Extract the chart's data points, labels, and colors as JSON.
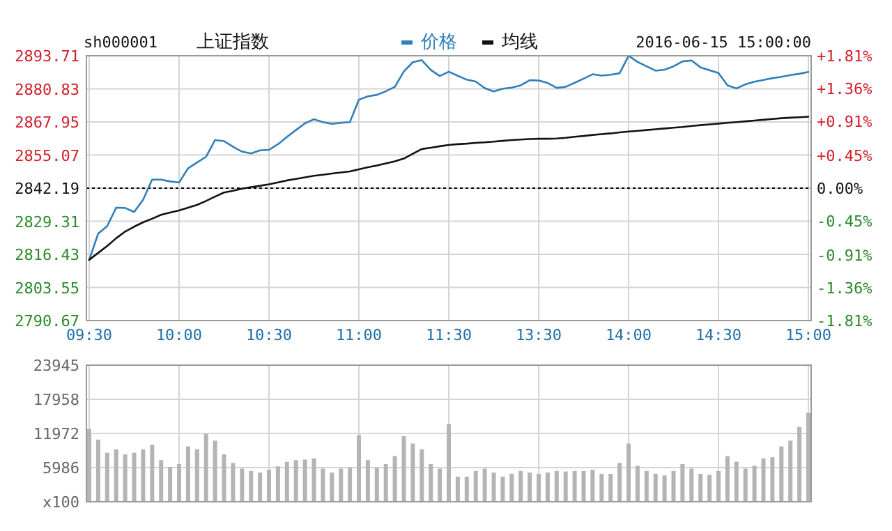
{
  "chart_data": [
    {
      "type": "line",
      "title": "上证指数",
      "subtitle": "2016-06-15 15:00:00",
      "annotations": [
        "sh000001"
      ],
      "categories": [
        "09:30",
        null,
        null,
        null,
        null,
        null,
        null,
        null,
        null,
        null,
        "10:00",
        null,
        null,
        null,
        null,
        null,
        null,
        null,
        null,
        null,
        "10:30",
        null,
        null,
        null,
        null,
        null,
        null,
        null,
        null,
        null,
        "11:00",
        null,
        null,
        null,
        null,
        null,
        null,
        null,
        null,
        null,
        "11:30",
        null,
        null,
        null,
        null,
        null,
        null,
        null,
        null,
        null,
        "13:30",
        null,
        null,
        null,
        null,
        null,
        null,
        null,
        null,
        null,
        "14:00",
        null,
        null,
        null,
        null,
        null,
        null,
        null,
        null,
        null,
        "14:30",
        null,
        null,
        null,
        null,
        null,
        null,
        null,
        null,
        null,
        "15:00"
      ],
      "ylim": [
        2790.67,
        2893.71
      ],
      "yticks": [
        2790.67,
        2803.55,
        2816.43,
        2829.31,
        2842.19,
        2855.07,
        2867.95,
        2880.83,
        2893.71
      ],
      "y2lim": [
        -1.81,
        1.81
      ],
      "y2ticks": [
        {
          "value": -1.81,
          "label": "-1.81%"
        },
        {
          "value": -1.36,
          "label": "-1.36%"
        },
        {
          "value": -0.91,
          "label": "-0.91%"
        },
        {
          "value": -0.45,
          "label": "-0.45%"
        },
        {
          "value": 0,
          "label": "0.00%"
        },
        {
          "value": 0.45,
          "label": "+0.45%"
        },
        {
          "value": 0.91,
          "label": "+0.91%"
        },
        {
          "value": 1.36,
          "label": "+1.36%"
        },
        {
          "value": 1.81,
          "label": "+1.81%"
        }
      ],
      "ref_lines": [
        {
          "axis": "y",
          "value": 2842.19,
          "color": "#000000",
          "line_style": "dotted"
        }
      ],
      "grid": true,
      "legend": "top",
      "series": [
        {
          "name": "价格",
          "color": "#2f7fb8",
          "values": [
            2814.3,
            2824.5,
            2827.4,
            2834.6,
            2834.5,
            2832.9,
            2837.7,
            2845.5,
            2845.5,
            2844.8,
            2844.4,
            2849.9,
            2852.2,
            2854.4,
            2860.9,
            2860.5,
            2858.3,
            2856.4,
            2855.7,
            2856.9,
            2857.1,
            2859.3,
            2862.1,
            2864.8,
            2867.4,
            2869,
            2867.9,
            2867.2,
            2867.6,
            2867.9,
            2876.6,
            2877.9,
            2878.5,
            2879.9,
            2881.6,
            2887.6,
            2891.2,
            2892,
            2888.2,
            2885.8,
            2887.5,
            2885.9,
            2884.4,
            2883.7,
            2881.1,
            2879.8,
            2880.9,
            2881.3,
            2882.2,
            2884.2,
            2884.1,
            2883.1,
            2881.2,
            2881.6,
            2883.2,
            2884.8,
            2886.5,
            2886,
            2886.3,
            2886.9,
            2893.7,
            2891.3,
            2889.6,
            2887.9,
            2888.3,
            2889.6,
            2891.5,
            2891.9,
            2889.2,
            2888.1,
            2887,
            2882.2,
            2881,
            2882.6,
            2883.6,
            2884.3,
            2885,
            2885.5,
            2886.2,
            2886.7,
            2887.4
          ]
        },
        {
          "name": "均线",
          "color": "#111111",
          "values": [
            2814.3,
            2817,
            2819.7,
            2822.7,
            2825.3,
            2827.2,
            2828.9,
            2830.3,
            2831.8,
            2832.7,
            2833.5,
            2834.6,
            2835.7,
            2837.2,
            2838.9,
            2840.5,
            2841.2,
            2842,
            2842.6,
            2843.1,
            2843.7,
            2844.4,
            2845.2,
            2845.8,
            2846.4,
            2847,
            2847.4,
            2847.9,
            2848.3,
            2848.7,
            2849.5,
            2850.3,
            2851,
            2851.8,
            2852.6,
            2853.7,
            2855.6,
            2857.4,
            2857.9,
            2858.5,
            2859,
            2859.3,
            2859.5,
            2859.8,
            2860,
            2860.3,
            2860.6,
            2860.9,
            2861.1,
            2861.3,
            2861.4,
            2861.4,
            2861.5,
            2861.8,
            2862.2,
            2862.5,
            2862.9,
            2863.2,
            2863.5,
            2863.9,
            2864.2,
            2864.5,
            2864.8,
            2865.1,
            2865.4,
            2865.7,
            2866,
            2866.4,
            2866.7,
            2867,
            2867.3,
            2867.6,
            2867.9,
            2868.2,
            2868.5,
            2868.8,
            2869.1,
            2869.4,
            2869.6,
            2869.8,
            2870
          ]
        }
      ]
    },
    {
      "type": "bar",
      "tick_labels": "y",
      "grid": true,
      "color": "#b4b4b4",
      "categories": [
        null,
        null,
        null,
        null,
        null,
        null,
        null,
        null,
        null,
        null,
        null,
        null,
        null,
        null,
        null,
        null,
        null,
        null,
        null,
        null,
        null,
        null,
        null,
        null,
        null,
        null,
        null,
        null,
        null,
        null,
        null,
        null,
        null,
        null,
        null,
        null,
        null,
        null,
        null,
        null,
        null,
        null,
        null,
        null,
        null,
        null,
        null,
        null,
        null,
        null,
        null,
        null,
        null,
        null,
        null,
        null,
        null,
        null,
        null,
        null,
        null,
        null,
        null,
        null,
        null,
        null,
        null,
        null,
        null,
        null,
        null,
        null,
        null,
        null,
        null,
        null,
        null,
        null,
        null,
        null,
        null
      ],
      "ylim": [
        0,
        23945
      ],
      "yticks": [
        {
          "value": 0,
          "label": "x100"
        },
        5986,
        11972,
        17958,
        23945
      ],
      "values": [
        12800,
        10900,
        8600,
        9200,
        8300,
        8600,
        9200,
        10000,
        7300,
        6100,
        6600,
        9700,
        9200,
        11900,
        10700,
        8300,
        6800,
        5800,
        5400,
        5100,
        5600,
        6200,
        7000,
        7300,
        7400,
        7600,
        5800,
        5100,
        5800,
        6000,
        11700,
        7300,
        6000,
        6600,
        8000,
        11500,
        10200,
        9200,
        6600,
        5800,
        13600,
        4400,
        4400,
        5400,
        5800,
        5100,
        4400,
        4900,
        5400,
        5100,
        4900,
        5100,
        5400,
        5300,
        5400,
        5400,
        5600,
        4900,
        4900,
        6800,
        10200,
        6300,
        5400,
        4900,
        4600,
        5400,
        6600,
        5800,
        4900,
        4700,
        5400,
        8000,
        7000,
        5800,
        6300,
        7600,
        7800,
        9700,
        10700,
        13100,
        15600
      ]
    }
  ]
}
